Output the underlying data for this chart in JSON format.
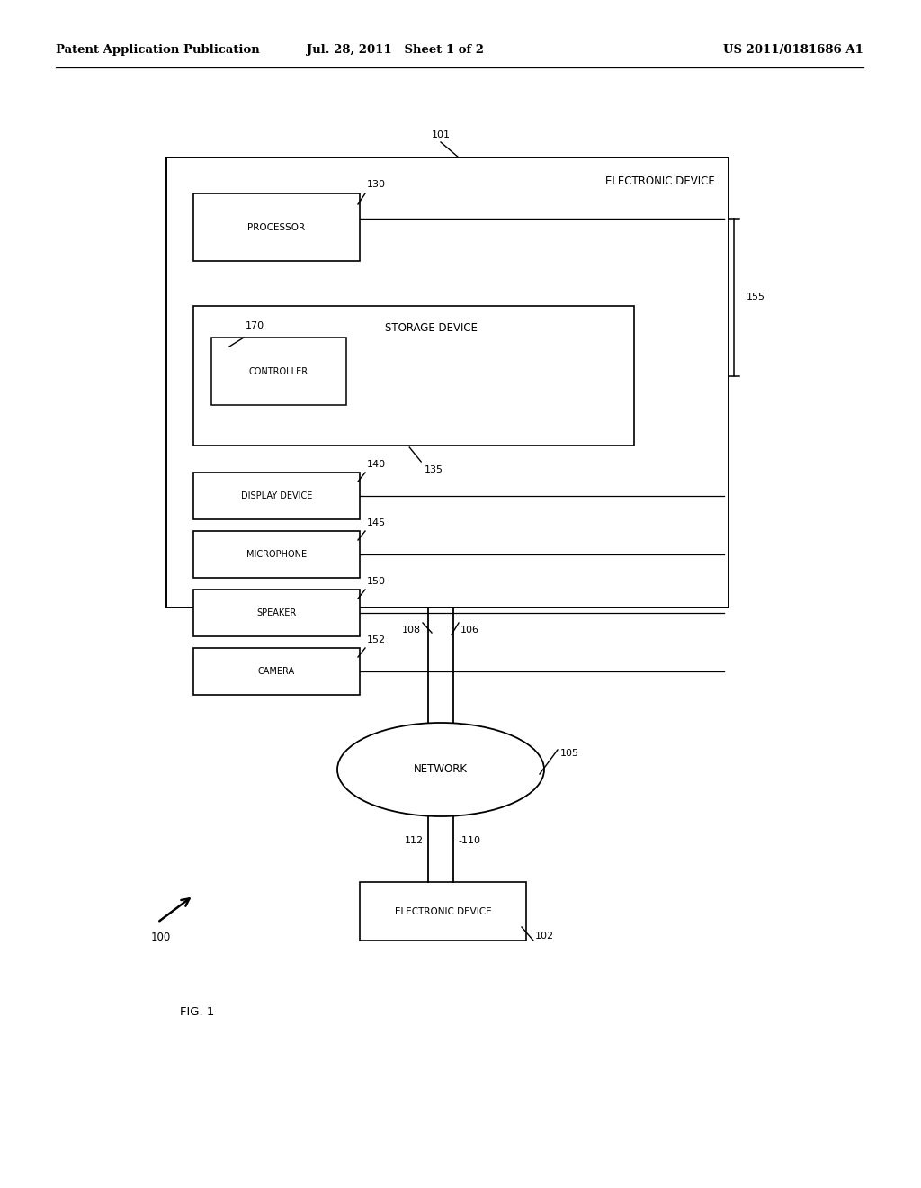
{
  "bg_color": "#ffffff",
  "header_left": "Patent Application Publication",
  "header_mid": "Jul. 28, 2011   Sheet 1 of 2",
  "header_right": "US 2011/0181686 A1",
  "fig_label": "FIG. 1"
}
